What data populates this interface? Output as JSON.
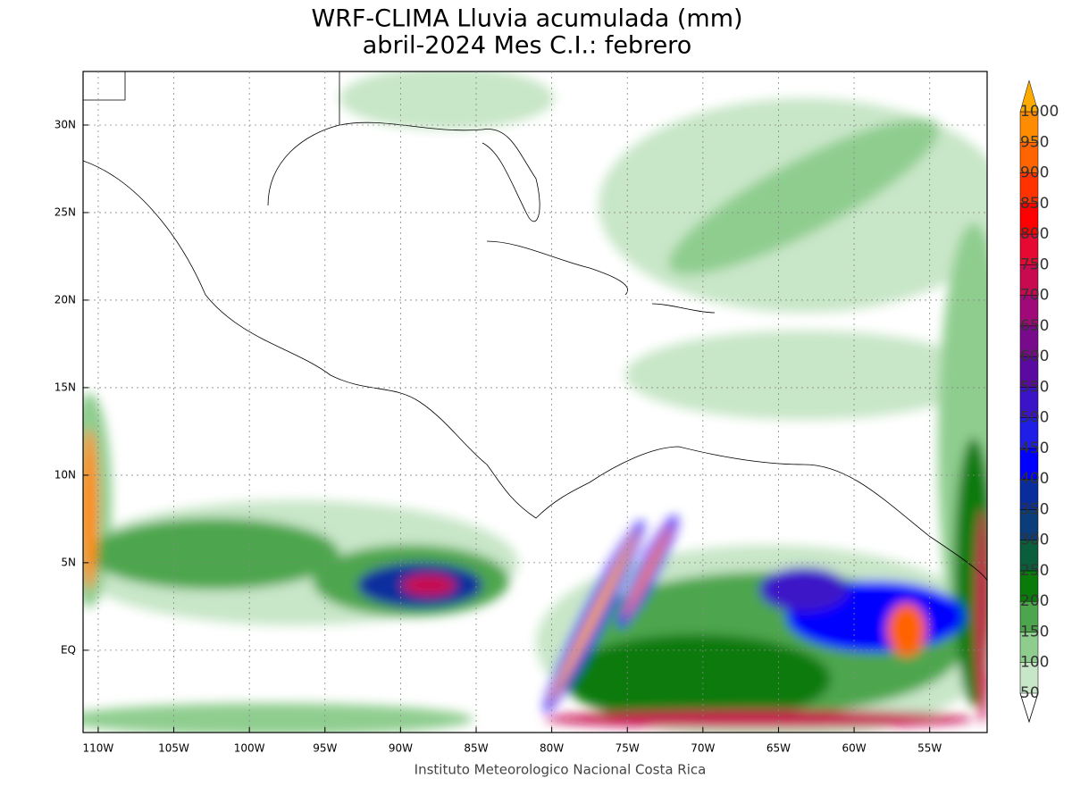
{
  "map": {
    "title": "WRF-CLIMA Lluvia acumulada (mm)",
    "subtitle": "abril-2024 Mes C.I.: febrero",
    "footer": "Instituto Meteorologico Nacional Costa Rica",
    "xlim": [
      -111,
      -51.2
    ],
    "ylim": [
      -4.7,
      33.06
    ],
    "xticks": [
      {
        "value": -110,
        "label": "110W"
      },
      {
        "value": -105,
        "label": "105W"
      },
      {
        "value": -100,
        "label": "100W"
      },
      {
        "value": -95,
        "label": "95W"
      },
      {
        "value": -90,
        "label": "90W"
      },
      {
        "value": -85,
        "label": "85W"
      },
      {
        "value": -80,
        "label": "80W"
      },
      {
        "value": -75,
        "label": "75W"
      },
      {
        "value": -70,
        "label": "70W"
      },
      {
        "value": -65,
        "label": "65W"
      },
      {
        "value": -60,
        "label": "60W"
      },
      {
        "value": -55,
        "label": "55W"
      }
    ],
    "yticks": [
      {
        "value": 0,
        "label": "EQ"
      },
      {
        "value": 5,
        "label": "5N"
      },
      {
        "value": 10,
        "label": "10N"
      },
      {
        "value": 15,
        "label": "15N"
      },
      {
        "value": 20,
        "label": "20N"
      },
      {
        "value": 25,
        "label": "25N"
      },
      {
        "value": 30,
        "label": "30N"
      }
    ],
    "grid": true,
    "legend": {
      "levels": [
        50,
        100,
        150,
        200,
        250,
        300,
        350,
        400,
        450,
        500,
        550,
        600,
        650,
        700,
        750,
        800,
        850,
        900,
        950,
        1000
      ],
      "colors": [
        "#c8e6c8",
        "#8fcd8f",
        "#4da64d",
        "#0a7a0a",
        "#0a5e3c",
        "#0a3d7a",
        "#0a2d9e",
        "#0000ff",
        "#1e1ee6",
        "#3c14c8",
        "#5a0aa0",
        "#780a8c",
        "#a00a78",
        "#c80a50",
        "#e60a32",
        "#ff0000",
        "#ff3200",
        "#ff6400",
        "#ff8c00",
        "#ffaa00"
      ]
    }
  }
}
